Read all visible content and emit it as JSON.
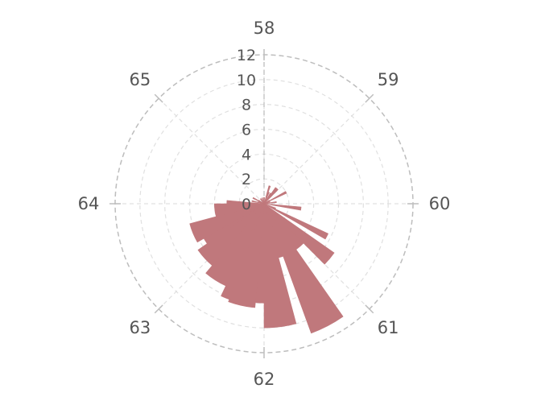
{
  "chart_data": {
    "type": "polar-bar",
    "angle_labels": [
      "58",
      "59",
      "60",
      "61",
      "62",
      "63",
      "64",
      "65"
    ],
    "radial_ticks": [
      0,
      2,
      4,
      6,
      8,
      10,
      12
    ],
    "r_max": 12,
    "bins": [
      {
        "angle": 2.5,
        "width": 5,
        "value": 0.5
      },
      {
        "angle": 17.5,
        "width": 5,
        "value": 1.5
      },
      {
        "angle": 22.5,
        "width": 5,
        "value": 1.0
      },
      {
        "angle": 32.5,
        "width": 5,
        "value": 1.0
      },
      {
        "angle": 40,
        "width": 10,
        "value": 1.6
      },
      {
        "angle": 57.5,
        "width": 5,
        "value": 0.5
      },
      {
        "angle": 62.5,
        "width": 5,
        "value": 2.0
      },
      {
        "angle": 72.5,
        "width": 5,
        "value": 0.5
      },
      {
        "angle": 82.5,
        "width": 5,
        "value": 1.0
      },
      {
        "angle": 97.5,
        "width": 5,
        "value": 3.0
      },
      {
        "angle": 112.5,
        "width": 5,
        "value": 1.0
      },
      {
        "angle": 117.5,
        "width": 5,
        "value": 5.7
      },
      {
        "angle": 130,
        "width": 10,
        "value": 6.9
      },
      {
        "angle": 140,
        "width": 10,
        "value": 4.5
      },
      {
        "angle": 152.5,
        "width": 15,
        "value": 11.1
      },
      {
        "angle": 162.5,
        "width": 5,
        "value": 4.5
      },
      {
        "angle": 172.5,
        "width": 15,
        "value": 10.0
      },
      {
        "angle": 182.5,
        "width": 5,
        "value": 8.0
      },
      {
        "angle": 192.5,
        "width": 15,
        "value": 8.4
      },
      {
        "angle": 202.5,
        "width": 5,
        "value": 8.2
      },
      {
        "angle": 212.5,
        "width": 15,
        "value": 7.3
      },
      {
        "angle": 227.5,
        "width": 15,
        "value": 6.5
      },
      {
        "angle": 237.5,
        "width": 5,
        "value": 5.6
      },
      {
        "angle": 247.5,
        "width": 15,
        "value": 6.2
      },
      {
        "angle": 262.5,
        "width": 15,
        "value": 4.0
      },
      {
        "angle": 272.5,
        "width": 5,
        "value": 3.0
      },
      {
        "angle": 282.5,
        "width": 5,
        "value": 1.0
      },
      {
        "angle": 287.5,
        "width": 5,
        "value": 0.5
      },
      {
        "angle": 297.5,
        "width": 5,
        "value": 1.0
      },
      {
        "angle": 302.5,
        "width": 5,
        "value": 0.5
      },
      {
        "angle": 322.5,
        "width": 5,
        "value": 0.5
      },
      {
        "angle": 327.5,
        "width": 5,
        "value": 0.4
      },
      {
        "angle": 337.5,
        "width": 5,
        "value": 0.5
      },
      {
        "angle": 352.5,
        "width": 5,
        "value": 0.5
      }
    ],
    "bar_color": "#c0787c",
    "grid": true,
    "legend": "none"
  }
}
